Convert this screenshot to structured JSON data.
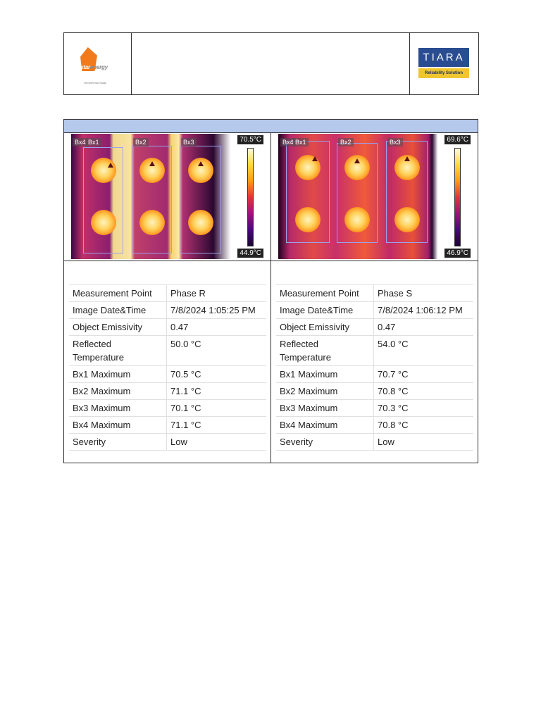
{
  "header": {
    "left_logo": {
      "name": "star energy",
      "text_a": "star",
      "text_b": "energy",
      "subtitle": "Geothermal Salak"
    },
    "right_logo": {
      "title": "TIARA",
      "subtitle": "Reliability Solution"
    }
  },
  "panels": [
    {
      "thermal": {
        "max_label": "70.5°C",
        "min_label": "44.9°C",
        "box_labels": [
          "Bx4",
          "Bx1",
          "Bx2",
          "Bx3"
        ]
      },
      "rows": [
        {
          "key": "Measurement Point",
          "value": "Phase R"
        },
        {
          "key": "Image Date&Time",
          "value": "7/8/2024 1:05:25 PM"
        },
        {
          "key": "Object Emissivity",
          "value": "0.47"
        },
        {
          "key": "Reflected Temperature",
          "value": "50.0 °C"
        },
        {
          "key": "Bx1 Maximum",
          "value": "70.5 °C"
        },
        {
          "key": "Bx2 Maximum",
          "value": "71.1 °C"
        },
        {
          "key": "Bx3 Maximum",
          "value": "70.1 °C"
        },
        {
          "key": "Bx4 Maximum",
          "value": "71.1 °C"
        },
        {
          "key": "Severity",
          "value": "Low"
        }
      ]
    },
    {
      "thermal": {
        "max_label": "69.6°C",
        "min_label": "46.9°C",
        "box_labels": [
          "Bx4",
          "Bx1",
          "Bx2",
          "Bx3"
        ]
      },
      "rows": [
        {
          "key": "Measurement Point",
          "value": "Phase S"
        },
        {
          "key": "Image Date&Time",
          "value": "7/8/2024 1:06:12 PM"
        },
        {
          "key": "Object Emissivity",
          "value": "0.47"
        },
        {
          "key": "Reflected Temperature",
          "value": "54.0 °C"
        },
        {
          "key": "Bx1 Maximum",
          "value": "70.7 °C"
        },
        {
          "key": "Bx2 Maximum",
          "value": "70.8 °C"
        },
        {
          "key": "Bx3 Maximum",
          "value": "70.3 °C"
        },
        {
          "key": "Bx4 Maximum",
          "value": "70.8 °C"
        },
        {
          "key": "Severity",
          "value": "Low"
        }
      ]
    }
  ],
  "colors": {
    "title_bar": "#b5c9ec",
    "tiara_blue": "#2a4d92",
    "tiara_yellow": "#f0c630",
    "logo_orange": "#f07a1c"
  }
}
